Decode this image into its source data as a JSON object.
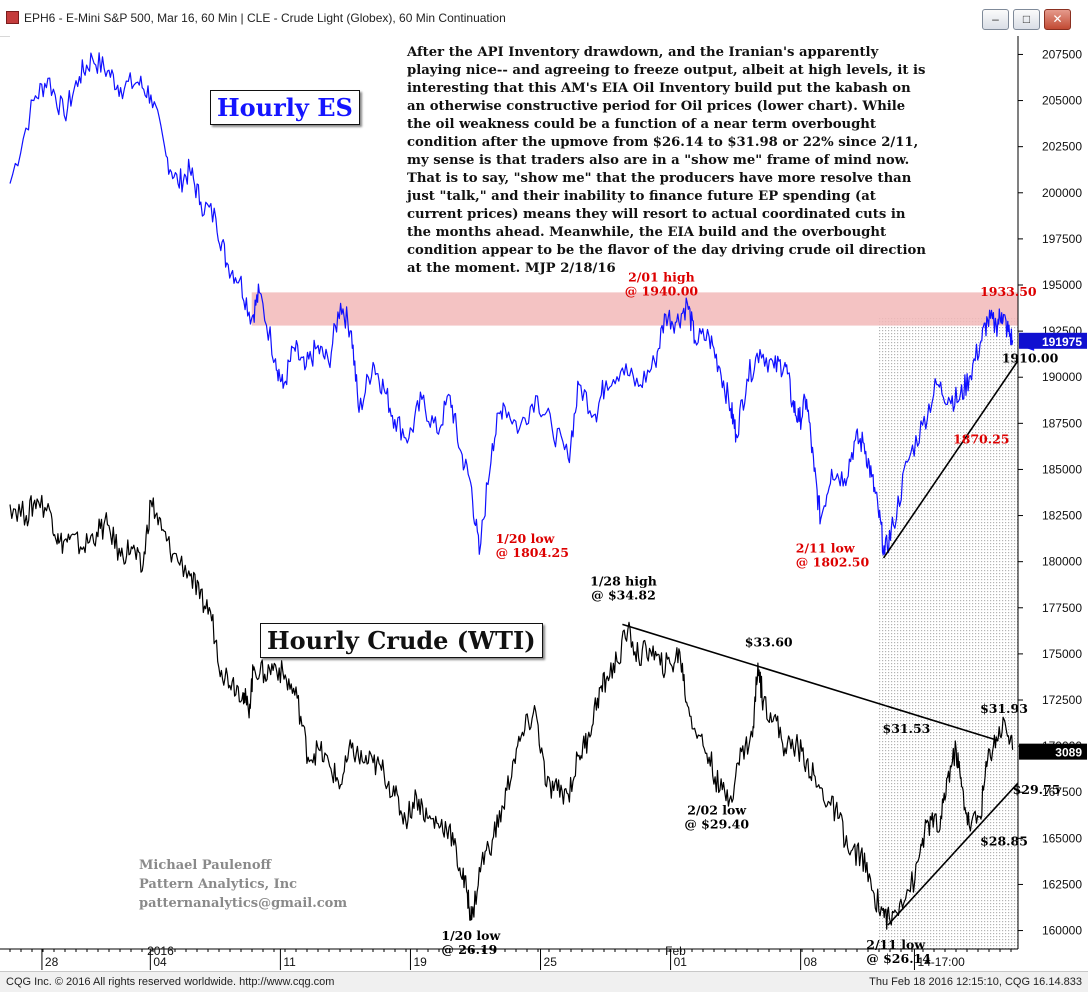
{
  "window": {
    "title": "EPH6 - E-Mini S&P 500, Mar 16, 60 Min  |  CLE - Crude Light (Globex), 60 Min Continuation",
    "buttons": {
      "minimize": "–",
      "maximize": "□",
      "close": "✕"
    }
  },
  "status": {
    "left": "CQG Inc. © 2016 All rights reserved worldwide. http://www.cqg.com",
    "right": "Thu Feb 18 2016 12:15:10, CQG 16.14.833"
  },
  "commentary": "After the API Inventory drawdown, and the Iranian's apparently playing nice-- and agreeing to freeze output, albeit at high levels, it is interesting that this AM's EIA Oil Inventory build put the kabash on an otherwise constructive period for Oil prices (lower chart). While the oil weakness could be a function of a near term overbought condition after the upmove from $26.14 to $31.98 or 22% since 2/11, my sense is that traders also are in a \"show me\" frame of mind now. That is to say, \"show me\" that the producers have more resolve than just \"talk,\" and their inability to finance future EP spending (at current prices) means they will resort to actual coordinated cuts in the months ahead. Meanwhile, the EIA build and the overbought condition appear to be the flavor of the day driving crude oil direction at the moment.    MJP 2/18/16",
  "labels": {
    "es_title": "Hourly ES",
    "crude_title": "Hourly Crude (WTI)",
    "author": "Michael Paulenoff",
    "company": "Pattern Analytics, Inc",
    "email": "patternanalytics@gmail.com"
  },
  "colors": {
    "es_line": "#1010ff",
    "crude_line": "#000000",
    "annotation_red": "#dd0000",
    "resistance_zone": "#f2b8b8",
    "price_badge": "#1010d0"
  },
  "chart_data": {
    "type": "line",
    "y_axis": {
      "range": [
        159000,
        208500
      ],
      "ticks": [
        {
          "value": 207500,
          "label": "207500"
        },
        {
          "value": 205000,
          "label": "205000"
        },
        {
          "value": 202500,
          "label": "202500"
        },
        {
          "value": 200000,
          "label": "200000"
        },
        {
          "value": 197500,
          "label": "197500"
        },
        {
          "value": 195000,
          "label": "195000"
        },
        {
          "value": 192500,
          "label": "192500"
        },
        {
          "value": 190000,
          "label": "190000"
        },
        {
          "value": 187500,
          "label": "187500"
        },
        {
          "value": 185000,
          "label": "185000"
        },
        {
          "value": 182500,
          "label": "182500"
        },
        {
          "value": 180000,
          "label": "180000"
        },
        {
          "value": 177500,
          "label": "177500"
        },
        {
          "value": 175000,
          "label": "175000"
        },
        {
          "value": 172500,
          "label": "172500"
        },
        {
          "value": 170000,
          "label": "170000"
        },
        {
          "value": 167500,
          "label": "167500"
        },
        {
          "value": 165000,
          "label": "165000"
        },
        {
          "value": 162500,
          "label": "162500"
        },
        {
          "value": 160000,
          "label": "160000"
        }
      ],
      "price_tags": [
        {
          "label": "191975",
          "value": 191975,
          "style": "blue"
        },
        {
          "label": "3089",
          "value": 169700,
          "style": "black"
        }
      ]
    },
    "x_axis": {
      "range": [
        0,
        93
      ],
      "ticks": [
        {
          "x": 3.5,
          "label": "28"
        },
        {
          "x": 13.5,
          "label": "04"
        },
        {
          "x": 25.5,
          "label": "11"
        },
        {
          "x": 37.5,
          "label": "19"
        },
        {
          "x": 49.5,
          "label": "25"
        },
        {
          "x": 61.5,
          "label": "01"
        },
        {
          "x": 73.5,
          "label": "08"
        },
        {
          "x": 84,
          "label": "14-17:00"
        }
      ],
      "section_labels": [
        {
          "x": 13.2,
          "label": "2016"
        },
        {
          "x": 61,
          "label": "Feb"
        }
      ]
    },
    "resistance_zone": {
      "x": [
        22.3,
        93
      ],
      "y": [
        192800,
        194600
      ]
    },
    "recent_shading": {
      "x": [
        80.1,
        93
      ]
    },
    "series": [
      {
        "name": "ES",
        "color": "#1010ff",
        "points": [
          [
            0,
            200500
          ],
          [
            2.2,
            205000
          ],
          [
            3.5,
            206200
          ],
          [
            5,
            204200
          ],
          [
            6.4,
            206300
          ],
          [
            7.6,
            207300
          ],
          [
            9,
            206600
          ],
          [
            10.2,
            205700
          ],
          [
            11.8,
            206000
          ],
          [
            13,
            205300
          ],
          [
            14.4,
            202000
          ],
          [
            15.5,
            200500
          ],
          [
            16.6,
            201200
          ],
          [
            17.6,
            199500
          ],
          [
            19,
            198600
          ],
          [
            20,
            196200
          ],
          [
            21.2,
            195300
          ],
          [
            22.3,
            193200
          ],
          [
            23,
            194600
          ],
          [
            24.5,
            191000
          ],
          [
            25.2,
            189400
          ],
          [
            26.2,
            191600
          ],
          [
            27.2,
            190400
          ],
          [
            28.3,
            191600
          ],
          [
            29.4,
            190800
          ],
          [
            30.5,
            194000
          ],
          [
            31.5,
            192500
          ],
          [
            32.2,
            188100
          ],
          [
            33.5,
            190800
          ],
          [
            34.5,
            189400
          ],
          [
            35.5,
            187700
          ],
          [
            36.8,
            186700
          ],
          [
            38,
            188800
          ],
          [
            39.4,
            187000
          ],
          [
            40.6,
            189000
          ],
          [
            41.5,
            186100
          ],
          [
            42.5,
            184300
          ],
          [
            43.3,
            180400
          ],
          [
            44.5,
            186400
          ],
          [
            45.5,
            188600
          ],
          [
            47,
            187200
          ],
          [
            48.5,
            189000
          ],
          [
            50,
            187300
          ],
          [
            51.5,
            185600
          ],
          [
            52.5,
            189600
          ],
          [
            54,
            188000
          ],
          [
            55,
            189800
          ],
          [
            56.5,
            190500
          ],
          [
            58,
            189500
          ],
          [
            59.5,
            190800
          ],
          [
            60.5,
            193400
          ],
          [
            61.5,
            193000
          ],
          [
            62.5,
            194000
          ],
          [
            63.2,
            192000
          ],
          [
            64.5,
            192200
          ],
          [
            65.5,
            190500
          ],
          [
            66.5,
            188300
          ],
          [
            67,
            186900
          ],
          [
            68,
            189900
          ],
          [
            69.2,
            191500
          ],
          [
            70.5,
            190500
          ],
          [
            71.5,
            190800
          ],
          [
            72.2,
            188600
          ],
          [
            72.8,
            187600
          ],
          [
            73.5,
            188800
          ],
          [
            74.2,
            184900
          ],
          [
            74.8,
            182300
          ],
          [
            75.8,
            185000
          ],
          [
            77,
            184500
          ],
          [
            78,
            186600
          ],
          [
            78.8,
            186400
          ],
          [
            79.5,
            184600
          ],
          [
            80.1,
            182800
          ],
          [
            80.7,
            180400
          ],
          [
            81.5,
            182000
          ],
          [
            82.8,
            185400
          ],
          [
            84.2,
            187400
          ],
          [
            85.5,
            189600
          ],
          [
            86.6,
            188900
          ],
          [
            87.6,
            188800
          ],
          [
            88.5,
            190000
          ],
          [
            89.5,
            191800
          ],
          [
            90.2,
            193100
          ],
          [
            91,
            192800
          ],
          [
            91.5,
            193500
          ],
          [
            92,
            192600
          ],
          [
            92.5,
            192000
          ]
        ]
      },
      {
        "name": "Crude",
        "color": "#000000",
        "points": [
          [
            0,
            183100
          ],
          [
            1.5,
            182500
          ],
          [
            2.5,
            183400
          ],
          [
            3.8,
            182600
          ],
          [
            4.5,
            181000
          ],
          [
            5.5,
            181200
          ],
          [
            6.8,
            180800
          ],
          [
            8,
            181600
          ],
          [
            9,
            182000
          ],
          [
            10.2,
            180300
          ],
          [
            11.2,
            180800
          ],
          [
            12.2,
            179500
          ],
          [
            13,
            183300
          ],
          [
            14,
            181700
          ],
          [
            15,
            180400
          ],
          [
            16.5,
            179500
          ],
          [
            17.5,
            178000
          ],
          [
            18.5,
            177300
          ],
          [
            19.5,
            174100
          ],
          [
            20.5,
            173500
          ],
          [
            21.5,
            172900
          ],
          [
            22,
            171900
          ],
          [
            22.5,
            174300
          ],
          [
            23.5,
            173900
          ],
          [
            24.5,
            174400
          ],
          [
            25.5,
            173600
          ],
          [
            26.5,
            172600
          ],
          [
            27.5,
            169400
          ],
          [
            28.5,
            169800
          ],
          [
            29.5,
            168900
          ],
          [
            30.5,
            167900
          ],
          [
            31.5,
            169900
          ],
          [
            32.5,
            169200
          ],
          [
            33.5,
            169100
          ],
          [
            34.5,
            168600
          ],
          [
            35.5,
            167300
          ],
          [
            36.5,
            166000
          ],
          [
            37.5,
            167300
          ],
          [
            38.5,
            166100
          ],
          [
            39.5,
            165800
          ],
          [
            40.5,
            165600
          ],
          [
            41.5,
            163400
          ],
          [
            42.2,
            162000
          ],
          [
            42.6,
            160600
          ],
          [
            43.5,
            163700
          ],
          [
            44.5,
            164900
          ],
          [
            45.5,
            166700
          ],
          [
            46.5,
            169300
          ],
          [
            47.5,
            170900
          ],
          [
            48.5,
            171900
          ],
          [
            49.5,
            167800
          ],
          [
            50.5,
            167600
          ],
          [
            51.5,
            167400
          ],
          [
            52.5,
            169500
          ],
          [
            53.3,
            170400
          ],
          [
            54.2,
            172600
          ],
          [
            55,
            173600
          ],
          [
            56,
            174600
          ],
          [
            57,
            176300
          ],
          [
            58,
            174800
          ],
          [
            59,
            175300
          ],
          [
            60,
            174400
          ],
          [
            61,
            174400
          ],
          [
            61.8,
            175100
          ],
          [
            62.5,
            172200
          ],
          [
            63.5,
            170600
          ],
          [
            64.5,
            169400
          ],
          [
            65.5,
            167600
          ],
          [
            66.5,
            167300
          ],
          [
            67.5,
            169700
          ],
          [
            68.5,
            170500
          ],
          [
            69,
            174500
          ],
          [
            69.5,
            172400
          ],
          [
            70.5,
            171600
          ],
          [
            71.5,
            169900
          ],
          [
            72.5,
            170100
          ],
          [
            73.5,
            169200
          ],
          [
            74.5,
            167800
          ],
          [
            75.5,
            167000
          ],
          [
            76.5,
            166100
          ],
          [
            77.5,
            164100
          ],
          [
            78.5,
            164200
          ],
          [
            79.5,
            162200
          ],
          [
            80.5,
            161100
          ],
          [
            81.2,
            160500
          ],
          [
            82.2,
            161700
          ],
          [
            83.5,
            162800
          ],
          [
            84.2,
            165000
          ],
          [
            85,
            166000
          ],
          [
            85.8,
            165500
          ],
          [
            86.5,
            168300
          ],
          [
            87.3,
            169800
          ],
          [
            87.8,
            167800
          ],
          [
            88.5,
            165700
          ],
          [
            89.5,
            166200
          ],
          [
            90.2,
            169300
          ],
          [
            91,
            170500
          ],
          [
            91.8,
            171300
          ],
          [
            92.5,
            169800
          ]
        ]
      }
    ],
    "trendlines": [
      {
        "name": "es-support",
        "from": [
          80.6,
          180200
        ],
        "to": [
          93,
          190900
        ]
      },
      {
        "name": "crude-resistance",
        "from": [
          56.5,
          176600
        ],
        "to": [
          91.2,
          170300
        ]
      },
      {
        "name": "crude-support",
        "from": [
          81,
          160300
        ],
        "to": [
          93,
          168000
        ]
      }
    ],
    "arrows": [
      {
        "name": "es-price-arrow",
        "at": [
          93.2,
          191700
        ],
        "color": "#1010ff"
      },
      {
        "name": "crude-price-arrow",
        "at": [
          93.2,
          169800
        ],
        "color": "#000000"
      }
    ],
    "annotations": [
      {
        "lines": [
          "2/01 high",
          "@ 1940.00"
        ],
        "x": 60.1,
        "y": 195200,
        "color": "#dd0000",
        "anchor": "middle"
      },
      {
        "lines": [
          "1933.50"
        ],
        "x": 89.5,
        "y": 194400,
        "color": "#dd0000",
        "anchor": "start"
      },
      {
        "lines": [
          "1910.00"
        ],
        "x": 91.5,
        "y": 190800,
        "color": "#000000",
        "anchor": "start"
      },
      {
        "lines": [
          "1870.25"
        ],
        "x": 87,
        "y": 186400,
        "color": "#dd0000",
        "anchor": "start"
      },
      {
        "lines": [
          "1/20 low",
          "@ 1804.25"
        ],
        "x": 44.8,
        "y": 181000,
        "color": "#dd0000",
        "anchor": "start"
      },
      {
        "lines": [
          "2/11 low",
          "@ 1802.50"
        ],
        "x": 72.5,
        "y": 180500,
        "color": "#dd0000",
        "anchor": "start"
      },
      {
        "lines": [
          "1/28 high",
          "@ $34.82"
        ],
        "x": 56.6,
        "y": 178700,
        "color": "#000000",
        "anchor": "middle"
      },
      {
        "lines": [
          "$33.60"
        ],
        "x": 70,
        "y": 175400,
        "color": "#000000",
        "anchor": "middle"
      },
      {
        "lines": [
          "$31.93"
        ],
        "x": 89.5,
        "y": 171800,
        "color": "#000000",
        "anchor": "start"
      },
      {
        "lines": [
          "$31.53"
        ],
        "x": 80.5,
        "y": 170700,
        "color": "#000000",
        "anchor": "start"
      },
      {
        "lines": [
          "$29.75"
        ],
        "x": 92.5,
        "y": 167400,
        "color": "#000000",
        "anchor": "start"
      },
      {
        "lines": [
          "2/02 low",
          "@ $29.40"
        ],
        "x": 65.2,
        "y": 166300,
        "color": "#000000",
        "anchor": "middle"
      },
      {
        "lines": [
          "$28.85"
        ],
        "x": 89.5,
        "y": 164600,
        "color": "#000000",
        "anchor": "start"
      },
      {
        "lines": [
          "1/20 low",
          "@ 26.19"
        ],
        "x": 39.8,
        "y": 159500,
        "color": "#000000",
        "anchor": "start"
      },
      {
        "lines": [
          "2/11 low",
          "@ $26.14"
        ],
        "x": 79,
        "y": 159000,
        "color": "#000000",
        "anchor": "start"
      }
    ]
  }
}
